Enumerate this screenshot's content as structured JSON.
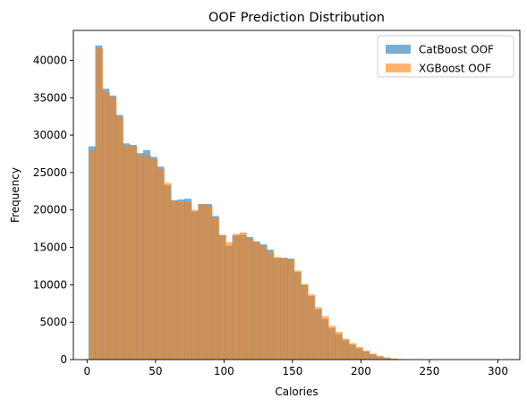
{
  "chart_data": {
    "type": "histogram",
    "title": "OOF Prediction Distribution",
    "xlabel": "Calories",
    "ylabel": "Frequency",
    "xlim": [
      -10,
      316
    ],
    "ylim": [
      0,
      44000
    ],
    "xticks": [
      0,
      50,
      100,
      150,
      200,
      250,
      300
    ],
    "yticks": [
      0,
      5000,
      10000,
      15000,
      20000,
      25000,
      30000,
      35000,
      40000
    ],
    "legend_position": "top-right",
    "grid": false,
    "series": [
      {
        "name": "CatBoost OOF",
        "color": "#1f77b4",
        "opacity": 0.6,
        "bin_start": 1,
        "bin_width": 5,
        "counts": [
          28500,
          42000,
          36200,
          35300,
          32700,
          28900,
          28700,
          27600,
          28000,
          27100,
          25800,
          23300,
          21300,
          21400,
          21500,
          19800,
          20800,
          20800,
          19200,
          16600,
          15200,
          16600,
          16700,
          16400,
          15800,
          15400,
          14700,
          13600,
          13600,
          13500,
          11700,
          10000,
          8500,
          6700,
          5400,
          4200,
          3400,
          2600,
          2000,
          1500,
          1100,
          700,
          400,
          200,
          100,
          50,
          20,
          10
        ]
      },
      {
        "name": "XGBoost OOF",
        "color": "#ff7f0e",
        "opacity": 0.6,
        "bin_start": 1.5,
        "bin_width": 5,
        "counts": [
          28000,
          41600,
          35800,
          35100,
          32500,
          28600,
          28600,
          27300,
          27300,
          26800,
          25500,
          23600,
          21200,
          21100,
          21100,
          20000,
          20800,
          20600,
          19000,
          16700,
          15700,
          16800,
          17000,
          16200,
          15700,
          15300,
          14300,
          13700,
          13600,
          13400,
          11900,
          10100,
          8700,
          7000,
          5800,
          4500,
          3700,
          2800,
          2200,
          1700,
          1200,
          800,
          500,
          300,
          150,
          80,
          40,
          20,
          10,
          5
        ]
      }
    ]
  }
}
